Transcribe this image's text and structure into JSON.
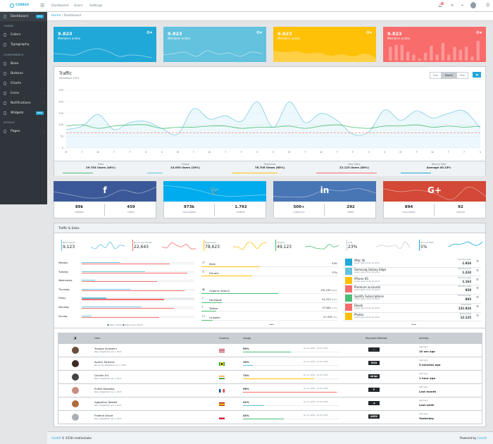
{
  "header": {
    "brand": "COREUI",
    "nav": [
      "Dashboard",
      "Users",
      "Settings"
    ],
    "notification_count": "5"
  },
  "breadcrumb": [
    "Home",
    "/",
    "Dashboard"
  ],
  "sidebar": {
    "items": [
      {
        "type": "item",
        "label": "Dashboard",
        "badge": "NEW",
        "active": true
      },
      {
        "type": "title",
        "label": "THEME"
      },
      {
        "type": "item",
        "label": "Colors"
      },
      {
        "type": "item",
        "label": "Typography"
      },
      {
        "type": "title",
        "label": "COMPONENTS"
      },
      {
        "type": "item",
        "label": "Base",
        "chevron": true
      },
      {
        "type": "item",
        "label": "Buttons",
        "chevron": true
      },
      {
        "type": "item",
        "label": "Charts"
      },
      {
        "type": "item",
        "label": "Icons",
        "chevron": true
      },
      {
        "type": "item",
        "label": "Notifications",
        "chevron": true
      },
      {
        "type": "item",
        "label": "Widgets",
        "badge": "NEW"
      },
      {
        "type": "title",
        "label": "EXTRAS"
      },
      {
        "type": "item",
        "label": "Pages",
        "chevron": true
      }
    ]
  },
  "stat_cards": [
    {
      "value": "9.823",
      "label": "Members online",
      "color": "#20a8d8",
      "chart": "line"
    },
    {
      "value": "9.823",
      "label": "Members online",
      "color": "#63c2de",
      "chart": "line"
    },
    {
      "value": "9.823",
      "label": "Members online",
      "color": "#ffc107",
      "chart": "area"
    },
    {
      "value": "9.823",
      "label": "Members online",
      "color": "#f86c6b",
      "chart": "bar"
    }
  ],
  "traffic": {
    "title": "Traffic",
    "subtitle": "November 2015",
    "periods": [
      "Day",
      "Month",
      "Year"
    ],
    "selected_period": "Month",
    "footer": [
      {
        "label": "Visits",
        "value": "29.703 Users (40%)",
        "percent": 40,
        "color": "#4dbd74"
      },
      {
        "label": "Unique",
        "value": "24.093 Users (20%)",
        "percent": 20,
        "color": "#63c2de"
      },
      {
        "label": "Pageviews",
        "value": "78.706 Views (60%)",
        "percent": 60,
        "color": "#ffc107"
      },
      {
        "label": "New Users",
        "value": "22.123 Users (80%)",
        "percent": 80,
        "color": "#f86c6b"
      },
      {
        "label": "Bounce Rate",
        "value": "Average 40.15%",
        "percent": 40.15,
        "color": "#20a8d8"
      }
    ]
  },
  "chart_data": {
    "type": "line",
    "x": [
      "M",
      "T",
      "W",
      "T",
      "F",
      "S",
      "S",
      "M",
      "T",
      "W",
      "T",
      "F",
      "S",
      "S",
      "M",
      "T",
      "W",
      "T",
      "F",
      "S",
      "S",
      "M",
      "T",
      "W",
      "T",
      "F",
      "S"
    ],
    "ylim": [
      0,
      250
    ],
    "yticks": [
      0,
      50,
      100,
      150,
      200,
      250
    ],
    "grid": true,
    "series": [
      {
        "values": [
          80,
          95,
          145,
          80,
          110,
          115,
          85,
          60,
          170,
          125,
          140,
          115,
          200,
          90,
          200,
          110,
          150,
          120,
          60,
          70,
          165,
          120,
          160,
          130,
          150,
          160,
          85
        ],
        "color": "#63c2de",
        "fill": true
      },
      {
        "values": [
          95,
          100,
          85,
          95,
          100,
          100,
          85,
          90,
          90,
          95,
          95,
          85,
          90,
          90,
          95,
          85,
          95,
          100,
          90,
          85,
          95,
          95,
          100,
          90,
          95,
          90,
          95
        ],
        "color": "#4dbd74"
      },
      {
        "values": [
          65,
          65,
          65,
          65,
          65,
          65,
          65,
          65,
          65,
          65,
          65,
          65,
          65,
          65,
          65,
          65,
          65,
          65,
          65,
          65,
          65,
          65,
          65,
          65,
          65,
          65,
          65
        ],
        "color": "#f86c6b",
        "dashed": true
      }
    ]
  },
  "social": [
    {
      "network": "facebook",
      "icon": "f",
      "color": "#3b5998",
      "stats": [
        {
          "value": "89k",
          "label": "friends"
        },
        {
          "value": "459",
          "label": "feeds"
        }
      ]
    },
    {
      "network": "twitter",
      "icon": "🐦",
      "color": "#00aced",
      "stats": [
        {
          "value": "973k",
          "label": "followers"
        },
        {
          "value": "1.792",
          "label": "tweets"
        }
      ]
    },
    {
      "network": "linkedin",
      "icon": "in",
      "color": "#4875b4",
      "stats": [
        {
          "value": "500+",
          "label": "contacts"
        },
        {
          "value": "292",
          "label": "feeds"
        }
      ]
    },
    {
      "network": "google-plus",
      "icon": "G+",
      "color": "#d34836",
      "stats": [
        {
          "value": "894",
          "label": "followers"
        },
        {
          "value": "92",
          "label": "circles"
        }
      ]
    }
  ],
  "sales": {
    "title": "Traffic & Sales",
    "stats": [
      {
        "label": "New Clients",
        "value": "9,123",
        "color": "#63c2de"
      },
      {
        "label": "Recurring Clients",
        "value": "22,643",
        "color": "#f86c6b"
      },
      {
        "label": "Pageviews",
        "value": "78,623",
        "color": "#ffc107"
      },
      {
        "label": "Organic",
        "value": "49,123",
        "color": "#4dbd74"
      },
      {
        "label": "CTR",
        "value": "23%",
        "color": "#c8ced3"
      },
      {
        "label": "Bounce Rate",
        "value": "5%",
        "color": "#20a8d8"
      }
    ],
    "days": [
      {
        "day": "Monday",
        "new": 34,
        "recurring": 78
      },
      {
        "day": "Tuesday",
        "new": 56,
        "recurring": 94
      },
      {
        "day": "Wednesday",
        "new": 12,
        "recurring": 67
      },
      {
        "day": "Thursday",
        "new": 43,
        "recurring": 91
      },
      {
        "day": "Friday",
        "new": 22,
        "recurring": 73
      },
      {
        "day": "Saturday",
        "new": 53,
        "recurring": 82
      },
      {
        "day": "Sunday",
        "new": 9,
        "recurring": 69
      }
    ],
    "legend": "■ New clients  ■ Recurring clients",
    "gender": [
      {
        "label": "Male",
        "value": "43%",
        "percent": 43
      },
      {
        "label": "Female",
        "value": "37%",
        "percent": 37
      }
    ],
    "sources": [
      {
        "label": "Organic Search",
        "value": "191,235",
        "share": "(56%)",
        "percent": 56,
        "icon": "◉"
      },
      {
        "label": "Facebook",
        "value": "51,223",
        "share": "(15%)",
        "percent": 15,
        "icon": "f"
      },
      {
        "label": "Twitter",
        "value": "37,564",
        "share": "(11%)",
        "percent": 11,
        "icon": "t"
      },
      {
        "label": "LinkedIn",
        "value": "27,319",
        "share": "(8%)",
        "percent": 8,
        "icon": "in"
      }
    ],
    "more": "•••",
    "products": [
      {
        "name": "iMac 4k",
        "desc": "Lorem ipsum dolor sit amet",
        "label": "Sold this week",
        "value": "1.924",
        "color": "#20a8d8"
      },
      {
        "name": "Samsung Galaxy Edge",
        "desc": "Lorem ipsum dolor sit amet",
        "label": "Sold this week",
        "value": "1.224",
        "color": "#63c2de"
      },
      {
        "name": "iPhone 6S",
        "desc": "Lorem ipsum dolor sit amet",
        "label": "Sold this week",
        "value": "1.163",
        "color": "#ffc107"
      },
      {
        "name": "Premium accounts",
        "desc": "Lorem ipsum dolor sit amet",
        "label": "Sold this week",
        "value": "928",
        "color": "#f86c6b"
      },
      {
        "name": "Spotify Subscriptions",
        "desc": "Lorem ipsum dolor sit amet",
        "label": "Sold this week",
        "value": "893",
        "color": "#4dbd74"
      },
      {
        "name": "Ebook",
        "desc": "Lorem ipsum dolor sit amet",
        "label": "Downloads",
        "value": "121.924",
        "color": "#f86c6b"
      },
      {
        "name": "Photos",
        "desc": "Lorem ipsum dolor sit amet",
        "label": "Downloaded",
        "value": "12.125",
        "color": "#ffc107"
      }
    ]
  },
  "users_table": {
    "headers": [
      "User",
      "Country",
      "Usage",
      "Payment Method",
      "Activity"
    ],
    "rows": [
      {
        "name": "Yiorgos Avraamu",
        "meta": "New | Registered: Jan 1, 2015",
        "country": "us",
        "usage": "50%",
        "percent": 50,
        "color": "#4dbd74",
        "period": "Jun 11, 2015 - Jul 10, 2015",
        "payment": "mastercard",
        "last_label": "Last login",
        "last": "10 sec ago"
      },
      {
        "name": "Avram Tarasios",
        "meta": "Recurring | Registered: Jan 1, 2015",
        "country": "br",
        "usage": "10%",
        "percent": 10,
        "color": "#63c2de",
        "period": "Jun 11, 2015 - Jul 10, 2015",
        "payment": "visa",
        "last_label": "Last login",
        "last": "5 minutes ago"
      },
      {
        "name": "Quintin Ed",
        "meta": "New | Registered: Jan 1, 2015",
        "country": "in",
        "usage": "74%",
        "percent": 74,
        "color": "#ffc107",
        "period": "Jun 11, 2015 - Jul 10, 2015",
        "payment": "stripe",
        "last_label": "Last login",
        "last": "1 hour ago"
      },
      {
        "name": "Enéas Kwadwo",
        "meta": "New | Registered: Jan 1, 2015",
        "country": "fr",
        "usage": "98%",
        "percent": 98,
        "color": "#f86c6b",
        "period": "Jun 11, 2015 - Jul 10, 2015",
        "payment": "paypal",
        "last_label": "Last login",
        "last": "Last month"
      },
      {
        "name": "Agapetus Tadeáš",
        "meta": "New | Registered: Jan 1, 2015",
        "country": "es",
        "usage": "22%",
        "percent": 22,
        "color": "#63c2de",
        "period": "Jun 11, 2015 - Jul 10, 2015",
        "payment": "google-wallet",
        "last_label": "Last login",
        "last": "Last week"
      },
      {
        "name": "Friderik Dávid",
        "meta": "New | Registered: Jan 1, 2015",
        "country": "pl",
        "usage": "43%",
        "percent": 43,
        "color": "#4dbd74",
        "period": "Jun 11, 2015 - Jul 10, 2015",
        "payment": "amex",
        "last_label": "Last login",
        "last": "Yesterday"
      }
    ]
  },
  "footer": {
    "brand": "CoreUI",
    "copyright": "© 2018 creativeLabs",
    "powered_label": "Powered by",
    "powered_link": "CoreUI"
  }
}
